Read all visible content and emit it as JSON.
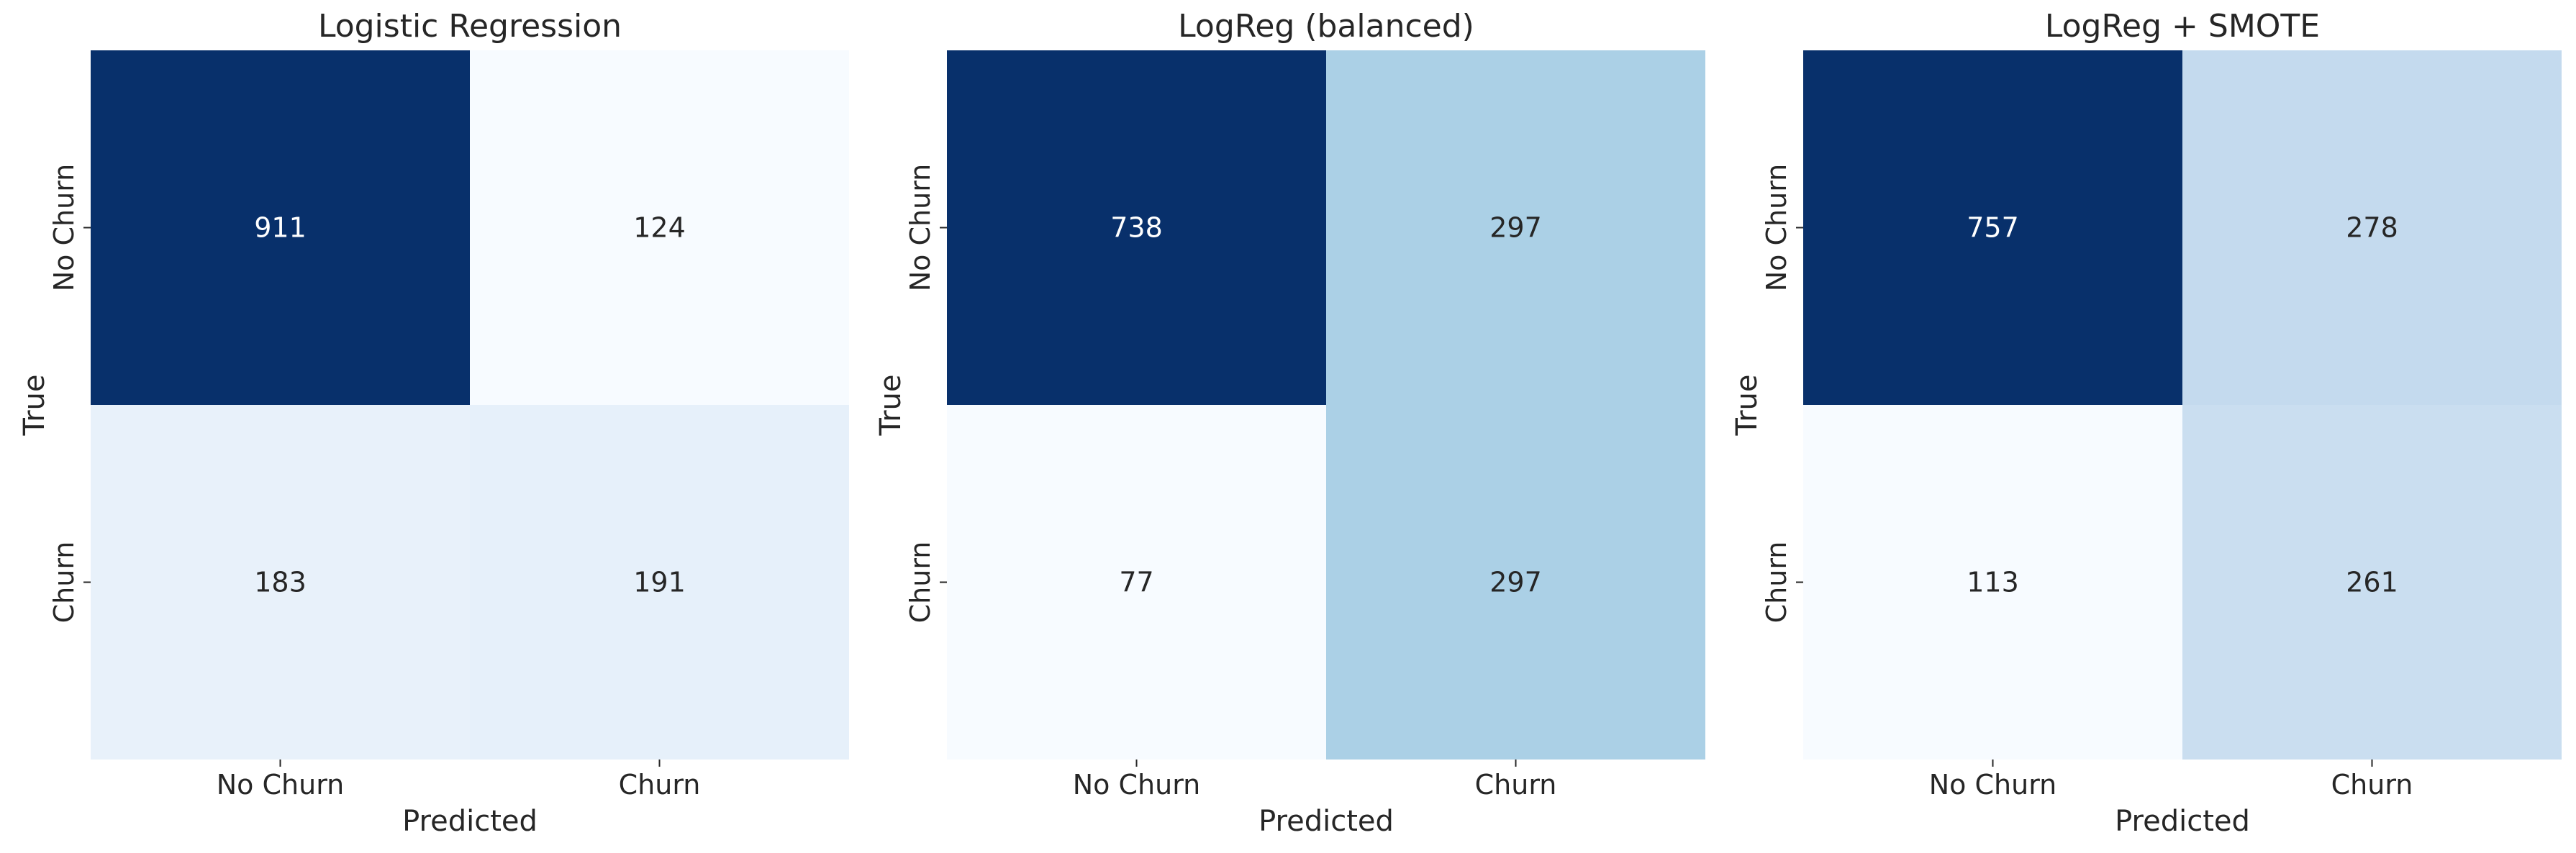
{
  "chart_data": [
    {
      "type": "heatmap",
      "title": "Logistic Regression",
      "xlabel": "Predicted",
      "ylabel": "True",
      "x_categories": [
        "No Churn",
        "Churn"
      ],
      "y_categories": [
        "No Churn",
        "Churn"
      ],
      "values": [
        [
          911,
          124
        ],
        [
          183,
          191
        ]
      ],
      "colormap": "Blues",
      "colorbar": false,
      "grid": false
    },
    {
      "type": "heatmap",
      "title": "LogReg (balanced)",
      "xlabel": "Predicted",
      "ylabel": "True",
      "x_categories": [
        "No Churn",
        "Churn"
      ],
      "y_categories": [
        "No Churn",
        "Churn"
      ],
      "values": [
        [
          738,
          297
        ],
        [
          77,
          297
        ]
      ],
      "colormap": "Blues",
      "colorbar": false,
      "grid": false
    },
    {
      "type": "heatmap",
      "title": "LogReg + SMOTE",
      "xlabel": "Predicted",
      "ylabel": "True",
      "x_categories": [
        "No Churn",
        "Churn"
      ],
      "y_categories": [
        "No Churn",
        "Churn"
      ],
      "values": [
        [
          757,
          278
        ],
        [
          113,
          261
        ]
      ],
      "colormap": "Blues",
      "colorbar": false,
      "grid": false
    }
  ],
  "colors": {
    "cmap_stops": [
      "#f7fbff",
      "#deebf7",
      "#c6dbef",
      "#9ecae1",
      "#6baed6",
      "#4292c6",
      "#2171b5",
      "#08519c",
      "#08306b"
    ],
    "text_dark": "#262626",
    "text_light": "#ffffff"
  }
}
